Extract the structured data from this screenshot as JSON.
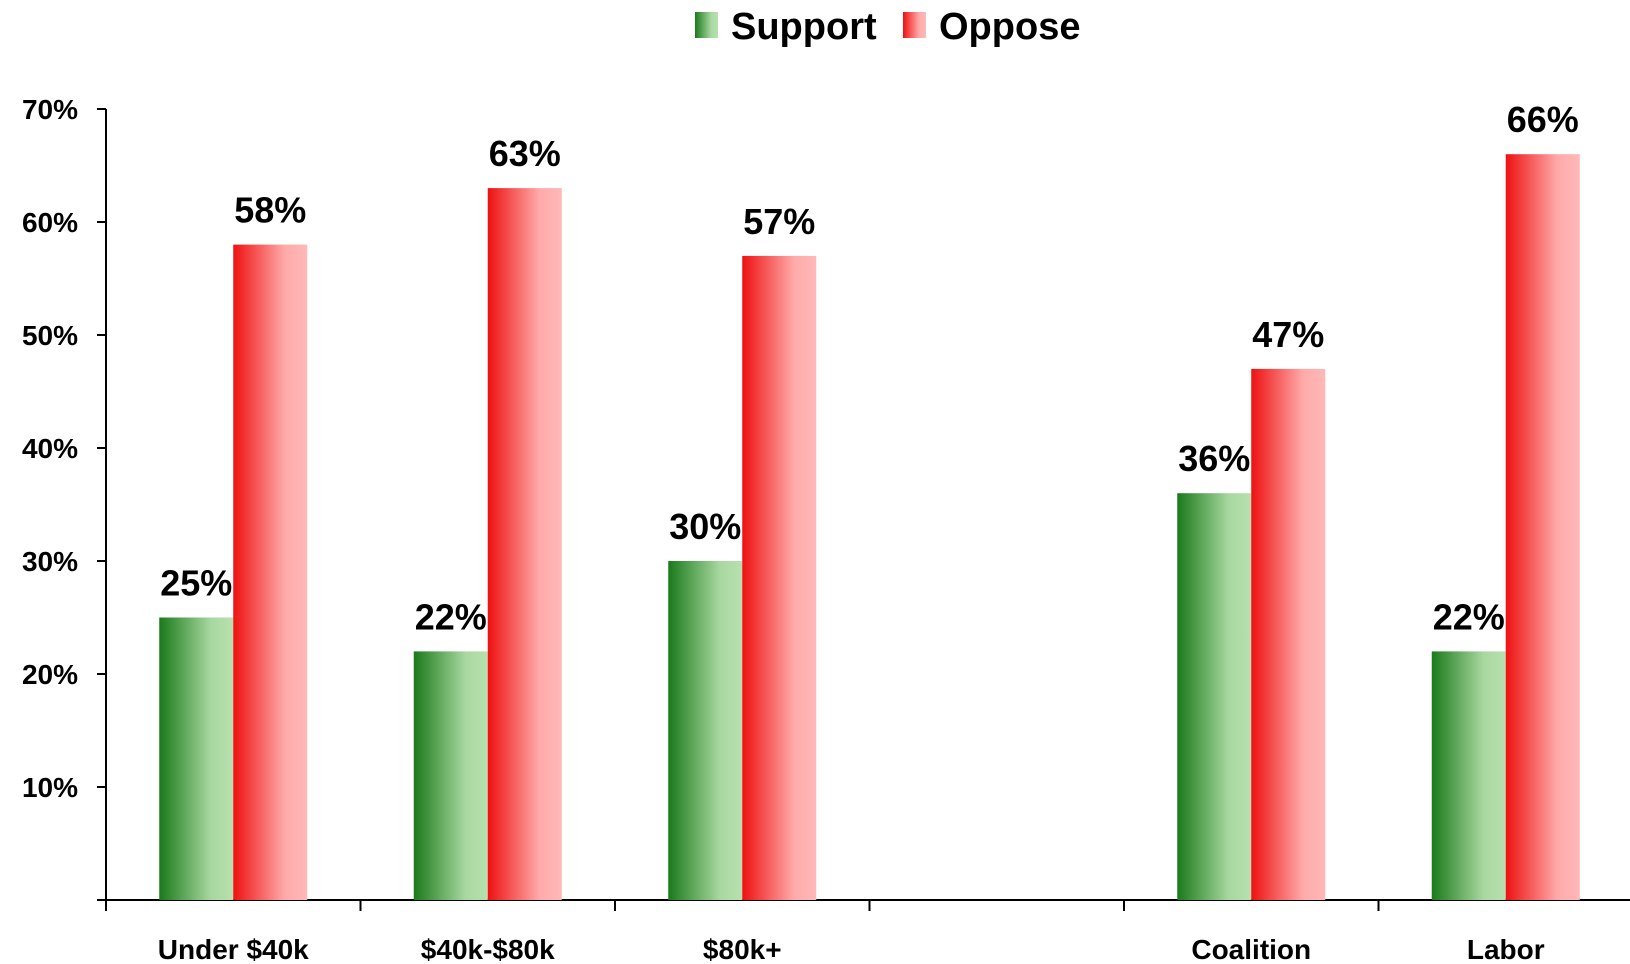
{
  "chart_data": {
    "type": "bar",
    "categories": [
      "Under $40k",
      "$40k-$80k",
      "$80k+",
      "",
      "Coalition",
      "Labor"
    ],
    "series": [
      {
        "name": "Support",
        "values": [
          25,
          22,
          30,
          null,
          36,
          22
        ],
        "value_labels": [
          "25%",
          "22%",
          "30%",
          "",
          "36%",
          "22%"
        ],
        "color_dark": "#1a7a1a",
        "color_light": "#a8d8a0"
      },
      {
        "name": "Oppose",
        "values": [
          58,
          63,
          57,
          null,
          47,
          66
        ],
        "value_labels": [
          "58%",
          "63%",
          "57%",
          "",
          "47%",
          "66%"
        ],
        "color_dark": "#ee1111",
        "color_light": "#ffb0b0"
      }
    ],
    "y_ticks": [
      "10%",
      "20%",
      "30%",
      "40%",
      "50%",
      "60%",
      "70%"
    ],
    "ylim": [
      0,
      70
    ],
    "legend_position": "top-center",
    "grid": false
  }
}
